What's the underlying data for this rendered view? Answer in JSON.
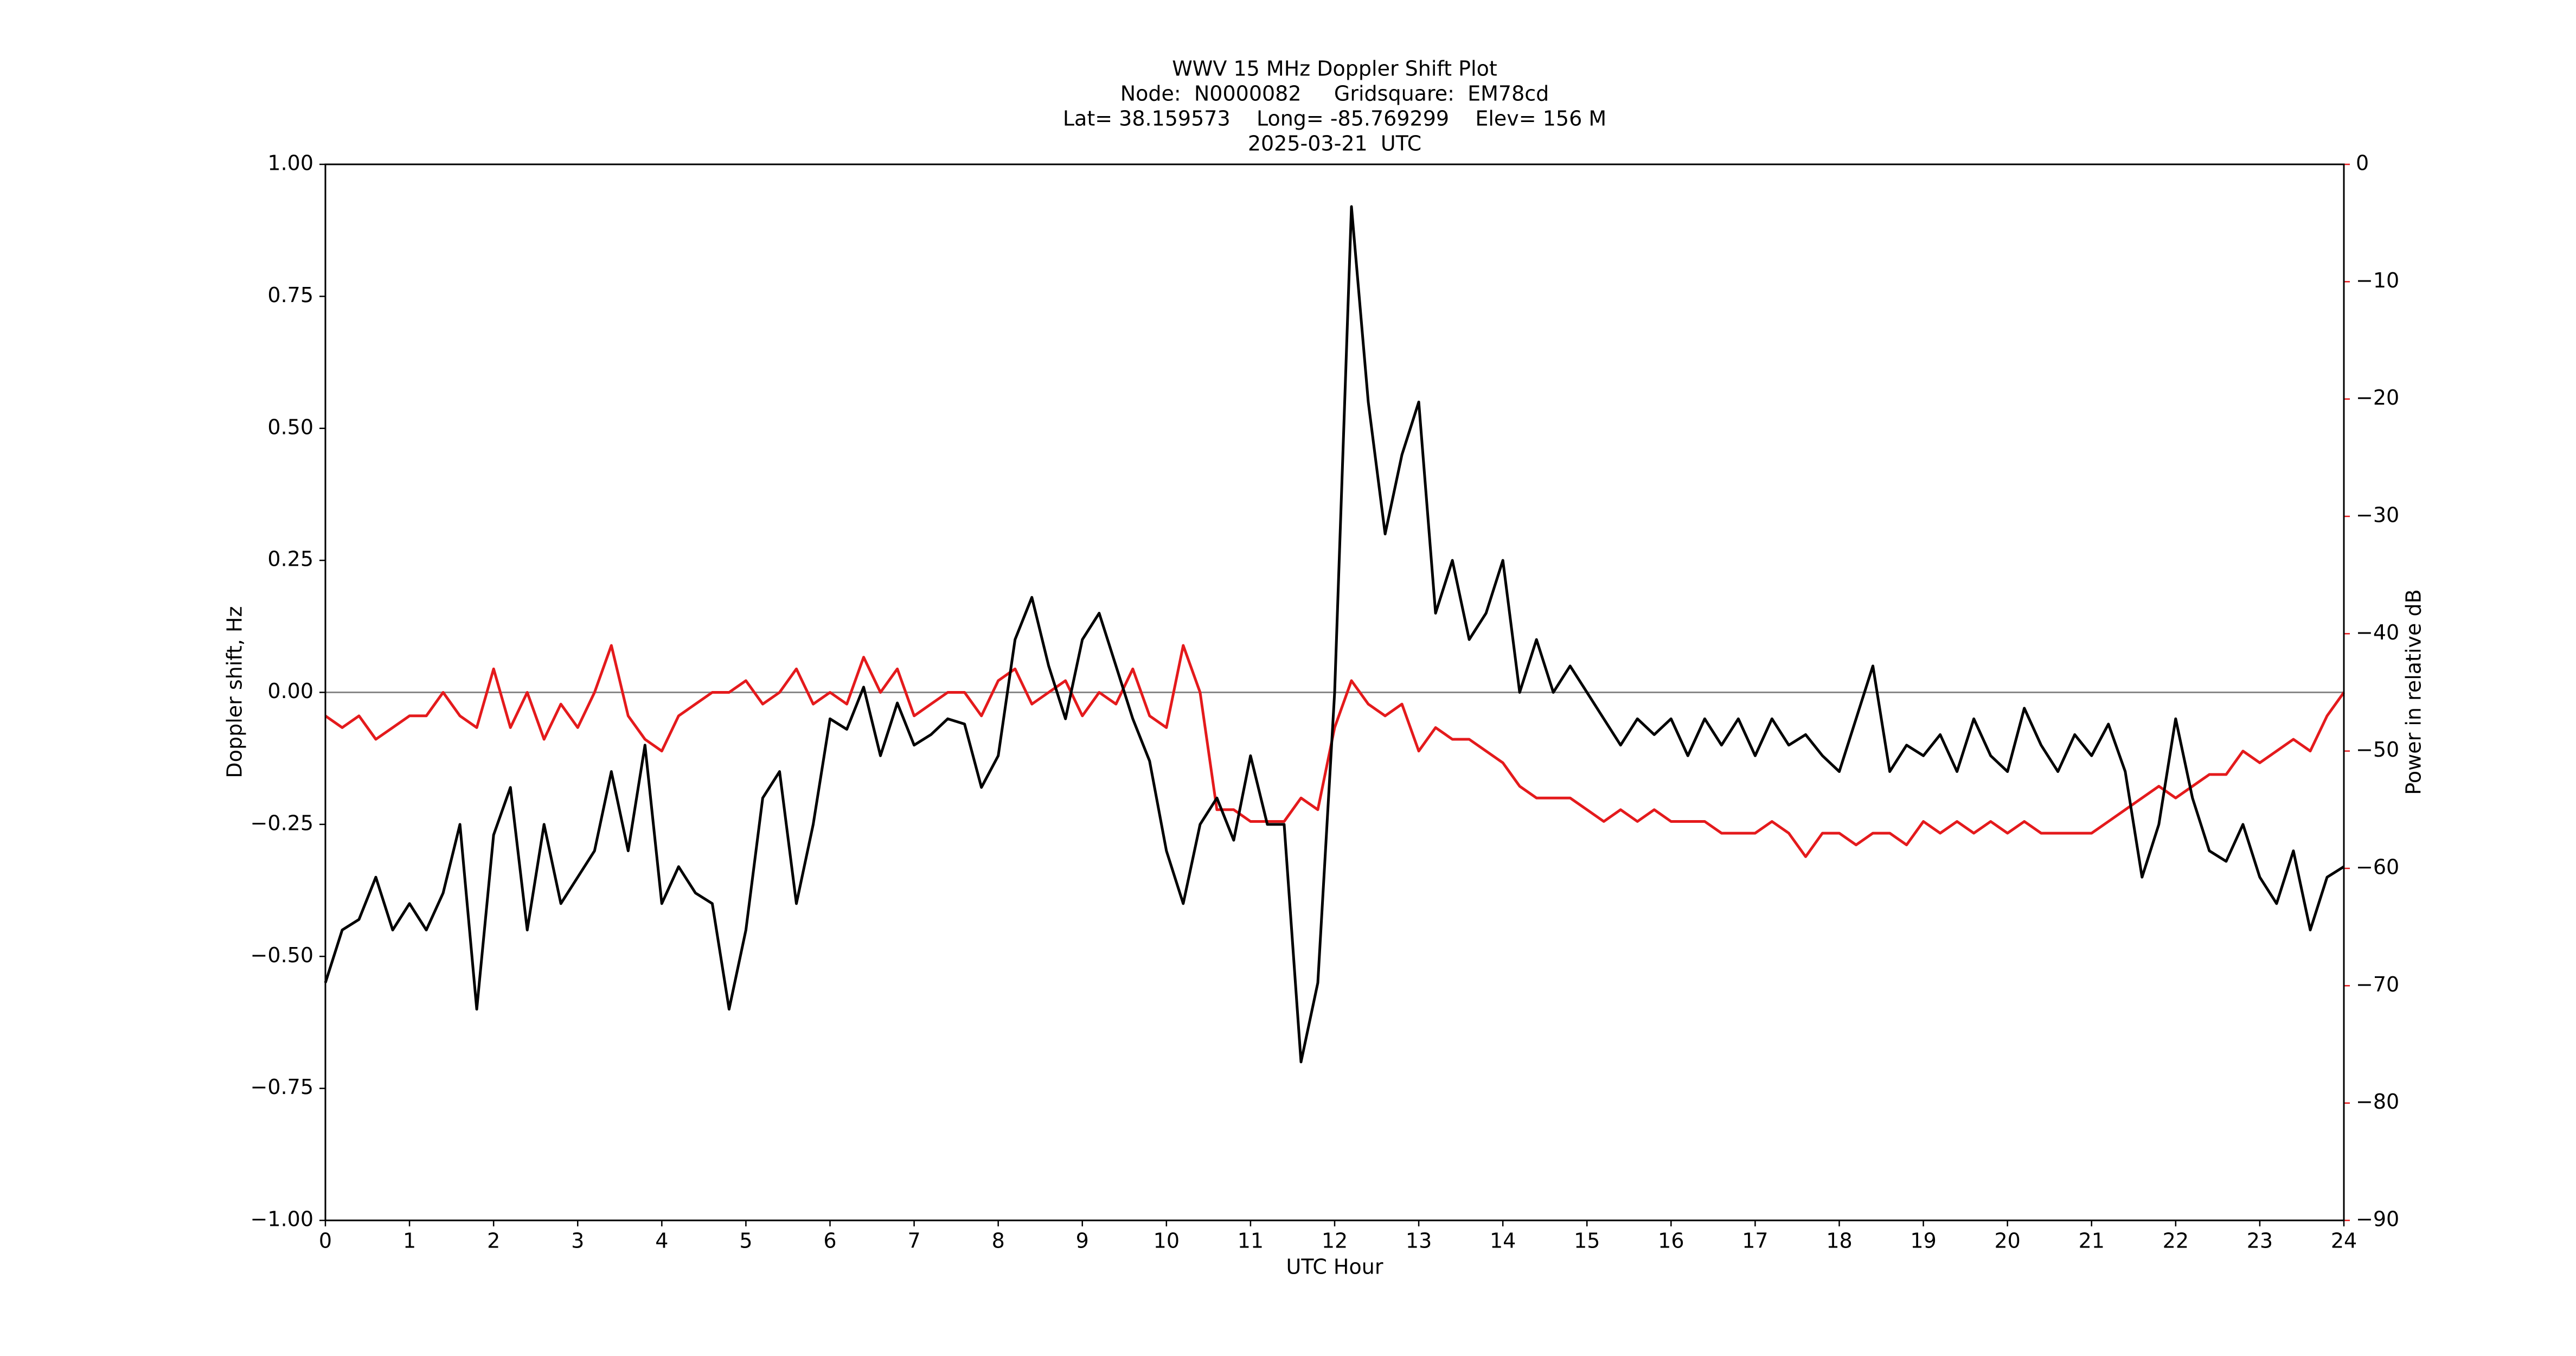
{
  "chart_data": {
    "type": "line",
    "title": [
      "WWV 15 MHz Doppler Shift Plot",
      "Node:  N0000082     Gridsquare:  EM78cd",
      "Lat= 38.159573    Long= -85.769299    Elev= 156 M",
      "2025-03-21  UTC"
    ],
    "xlabel": "UTC Hour",
    "ylabel": "Doppler shift, Hz",
    "y2label": "Power in relative dB",
    "y2color": "#e41a1c",
    "x": [
      0,
      0.2,
      0.4,
      0.6,
      0.8,
      1,
      1.2,
      1.4,
      1.6,
      1.8,
      2,
      2.2,
      2.4,
      2.6,
      2.8,
      3,
      3.2,
      3.4,
      3.6,
      3.8,
      4,
      4.2,
      4.4,
      4.6,
      4.8,
      5,
      5.2,
      5.4,
      5.6,
      5.8,
      6,
      6.2,
      6.4,
      6.6,
      6.8,
      7,
      7.2,
      7.4,
      7.6,
      7.8,
      8,
      8.2,
      8.4,
      8.6,
      8.8,
      9,
      9.2,
      9.4,
      9.6,
      9.8,
      10,
      10.2,
      10.4,
      10.6,
      10.8,
      11,
      11.2,
      11.4,
      11.6,
      11.8,
      12,
      12.2,
      12.4,
      12.6,
      12.8,
      13,
      13.2,
      13.4,
      13.6,
      13.8,
      14,
      14.2,
      14.4,
      14.6,
      14.8,
      15,
      15.2,
      15.4,
      15.6,
      15.8,
      16,
      16.2,
      16.4,
      16.6,
      16.8,
      17,
      17.2,
      17.4,
      17.6,
      17.8,
      18,
      18.2,
      18.4,
      18.6,
      18.8,
      19,
      19.2,
      19.4,
      19.6,
      19.8,
      20,
      20.2,
      20.4,
      20.6,
      20.8,
      21,
      21.2,
      21.4,
      21.6,
      21.8,
      22,
      22.2,
      22.4,
      22.6,
      22.8,
      23,
      23.2,
      23.4,
      23.6,
      23.8,
      24
    ],
    "series": [
      {
        "color": "#000000",
        "values": [
          -0.55,
          -0.45,
          -0.43,
          -0.35,
          -0.45,
          -0.4,
          -0.45,
          -0.38,
          -0.25,
          -0.6,
          -0.27,
          -0.18,
          -0.45,
          -0.25,
          -0.4,
          -0.35,
          -0.3,
          -0.15,
          -0.3,
          -0.1,
          -0.4,
          -0.33,
          -0.38,
          -0.4,
          -0.6,
          -0.45,
          -0.2,
          -0.15,
          -0.4,
          -0.25,
          -0.05,
          -0.07,
          0.01,
          -0.12,
          -0.02,
          -0.1,
          -0.08,
          -0.05,
          -0.06,
          -0.18,
          -0.12,
          0.1,
          0.18,
          0.05,
          -0.05,
          0.1,
          0.15,
          0.05,
          -0.05,
          -0.13,
          -0.3,
          -0.4,
          -0.25,
          -0.2,
          -0.28,
          -0.12,
          -0.25,
          -0.25,
          -0.7,
          -0.55,
          0.0,
          0.92,
          0.55,
          0.3,
          0.45,
          0.55,
          0.15,
          0.25,
          0.1,
          0.15,
          0.25,
          0.0,
          0.1,
          0.0,
          0.05,
          0.0,
          -0.05,
          -0.1,
          -0.05,
          -0.08,
          -0.05,
          -0.12,
          -0.05,
          -0.1,
          -0.05,
          -0.12,
          -0.05,
          -0.1,
          -0.08,
          -0.12,
          -0.15,
          -0.05,
          0.05,
          -0.15,
          -0.1,
          -0.12,
          -0.08,
          -0.15,
          -0.05,
          -0.12,
          -0.15,
          -0.03,
          -0.1,
          -0.15,
          -0.08,
          -0.12,
          -0.06,
          -0.15,
          -0.35,
          -0.25,
          -0.05,
          -0.2,
          -0.3,
          -0.32,
          -0.25,
          -0.35,
          -0.4,
          -0.3,
          -0.45,
          -0.35,
          -0.33
        ]
      },
      {
        "color": "#e41a1c",
        "axis": "y2",
        "values": [
          -47,
          -48,
          -47,
          -49,
          -48,
          -47,
          -47,
          -45,
          -47,
          -48,
          -43,
          -48,
          -45,
          -49,
          -46,
          -48,
          -45,
          -41,
          -47,
          -49,
          -50,
          -47,
          -46,
          -45,
          -45,
          -44,
          -46,
          -45,
          -43,
          -46,
          -45,
          -46,
          -42,
          -45,
          -43,
          -47,
          -46,
          -45,
          -45,
          -47,
          -44,
          -43,
          -46,
          -45,
          -44,
          -47,
          -45,
          -46,
          -43,
          -47,
          -48,
          -41,
          -45,
          -55,
          -55,
          -56,
          -56,
          -56,
          -54,
          -55,
          -48,
          -44,
          -46,
          -47,
          -46,
          -50,
          -48,
          -49,
          -49,
          -50,
          -51,
          -53,
          -54,
          -54,
          -54,
          -55,
          -56,
          -55,
          -56,
          -55,
          -56,
          -56,
          -56,
          -57,
          -57,
          -57,
          -56,
          -57,
          -59,
          -57,
          -57,
          -58,
          -57,
          -57,
          -58,
          -56,
          -57,
          -56,
          -57,
          -56,
          -57,
          -56,
          -57,
          -57,
          -57,
          -57,
          -56,
          -55,
          -54,
          -53,
          -54,
          -53,
          -52,
          -52,
          -50,
          -51,
          -50,
          -49,
          -50,
          -47,
          -45
        ]
      }
    ],
    "hline": 0,
    "xlim": [
      0,
      24
    ],
    "xticks": [
      0,
      1,
      2,
      3,
      4,
      5,
      6,
      7,
      8,
      9,
      10,
      11,
      12,
      13,
      14,
      15,
      16,
      17,
      18,
      19,
      20,
      21,
      22,
      23,
      24
    ],
    "ylim": [
      -1,
      1
    ],
    "yticks": [
      {
        "value": 1,
        "label": "1.00"
      },
      0.75,
      {
        "value": 0.5,
        "label": "0.50"
      },
      0.25,
      {
        "value": 0,
        "label": "0.00"
      },
      {
        "value": -0.25,
        "label": "−0.25"
      },
      {
        "value": -0.5,
        "label": "−0.50"
      },
      {
        "value": -0.75,
        "label": "−0.75"
      },
      {
        "value": -1,
        "label": "−1.00"
      }
    ],
    "y2lim": [
      -90,
      0
    ],
    "y2ticks": [
      0,
      {
        "value": -10,
        "label": "−10"
      },
      {
        "value": -20,
        "label": "−20"
      },
      {
        "value": -30,
        "label": "−30"
      },
      {
        "value": -40,
        "label": "−40"
      },
      {
        "value": -50,
        "label": "−50"
      },
      {
        "value": -60,
        "label": "−60"
      },
      {
        "value": -70,
        "label": "−70"
      },
      {
        "value": -80,
        "label": "−80"
      },
      {
        "value": -90,
        "label": "−90"
      }
    ]
  }
}
